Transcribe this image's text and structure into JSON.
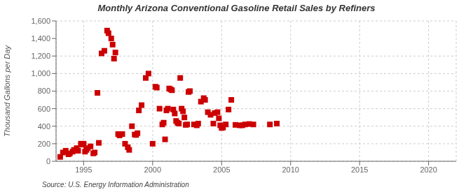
{
  "chart_data": {
    "type": "scatter",
    "title": "Monthly Arizona Conventional Gasoline Retail Sales by Refiners",
    "ylabel": "Thousand Gallons per Day",
    "annotations": [
      "Source: U.S. Energy Information Administration"
    ],
    "color": "#cc0000",
    "marker": "square",
    "grid": true,
    "xlim": [
      1993.0,
      2022.0
    ],
    "ylim": [
      0,
      1600
    ],
    "xticks": [
      1995,
      2000,
      2005,
      2010,
      2015,
      2020
    ],
    "yticks": [
      0,
      200,
      400,
      600,
      800,
      {
        "value": 1000,
        "label": "1,000"
      },
      {
        "value": 1200,
        "label": "1,200"
      },
      {
        "value": 1400,
        "label": "1,400"
      },
      {
        "value": 1600,
        "label": "1,600"
      }
    ],
    "x": [
      1993.3,
      1993.5,
      1993.7,
      1993.9,
      1994.0,
      1994.2,
      1994.3,
      1994.5,
      1994.6,
      1994.8,
      1994.9,
      1995.0,
      1995.1,
      1995.2,
      1995.3,
      1995.5,
      1995.7,
      1995.8,
      1996.0,
      1996.1,
      1996.3,
      1996.5,
      1996.7,
      1996.8,
      1997.0,
      1997.1,
      1997.2,
      1997.3,
      1997.5,
      1997.6,
      1997.8,
      1998.0,
      1998.2,
      1998.3,
      1998.5,
      1998.7,
      1998.8,
      1998.9,
      1999.0,
      1999.2,
      1999.5,
      1999.7,
      2000.0,
      2000.2,
      2000.3,
      2000.5,
      2000.7,
      2000.8,
      2000.9,
      2001.0,
      2001.1,
      2001.2,
      2001.3,
      2001.4,
      2001.5,
      2001.6,
      2001.7,
      2001.8,
      2001.9,
      2002.0,
      2002.1,
      2002.2,
      2002.3,
      2002.4,
      2002.5,
      2002.6,
      2002.7,
      2003.0,
      2003.2,
      2003.3,
      2003.5,
      2003.7,
      2003.8,
      2004.0,
      2004.2,
      2004.4,
      2004.5,
      2004.7,
      2004.8,
      2004.9,
      2005.0,
      2005.1,
      2005.3,
      2005.5,
      2005.7,
      2006.0,
      2006.3,
      2006.5,
      2006.7,
      2007.0,
      2007.3,
      2008.5,
      2009.0
    ],
    "values": [
      50,
      100,
      120,
      80,
      90,
      110,
      130,
      150,
      120,
      200,
      190,
      200,
      110,
      130,
      150,
      170,
      90,
      100,
      780,
      210,
      1230,
      1260,
      1490,
      1460,
      1400,
      1330,
      1170,
      1240,
      310,
      295,
      310,
      200,
      160,
      130,
      400,
      305,
      300,
      320,
      580,
      640,
      950,
      1000,
      200,
      850,
      840,
      600,
      420,
      440,
      250,
      580,
      600,
      830,
      820,
      810,
      590,
      545,
      460,
      440,
      430,
      950,
      600,
      570,
      500,
      415,
      420,
      790,
      800,
      420,
      410,
      430,
      680,
      720,
      700,
      560,
      530,
      430,
      550,
      560,
      490,
      410,
      380,
      385,
      420,
      590,
      700,
      415,
      410,
      410,
      420,
      425,
      420,
      420,
      430
    ]
  }
}
